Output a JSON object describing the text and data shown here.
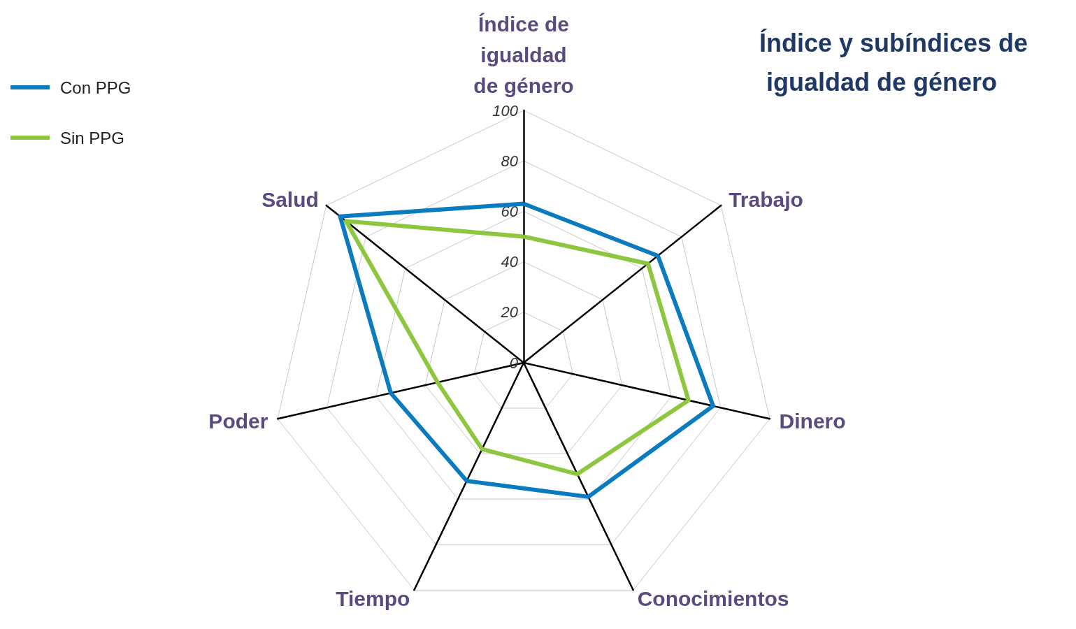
{
  "chart_data": {
    "type": "radar",
    "title": "Índice y subíndices de igualdad de género",
    "categories": [
      "Índice de igualdad de género",
      "Trabajo",
      "Dinero",
      "Conocimientos",
      "Tiempo",
      "Poder",
      "Salud"
    ],
    "series": [
      {
        "name": "Con PPG",
        "color": "#0a7bbf",
        "values": [
          63,
          68,
          77,
          59,
          52,
          54,
          93
        ]
      },
      {
        "name": "Sin PPG",
        "color": "#8dc63f",
        "values": [
          50,
          63,
          67,
          49,
          38,
          35,
          90
        ]
      }
    ],
    "ylim": [
      0,
      100
    ],
    "yticks": [
      0,
      20,
      40,
      60,
      80,
      100
    ],
    "grid": true,
    "legend": "top left",
    "marker": "none",
    "line_style": "solid"
  }
}
